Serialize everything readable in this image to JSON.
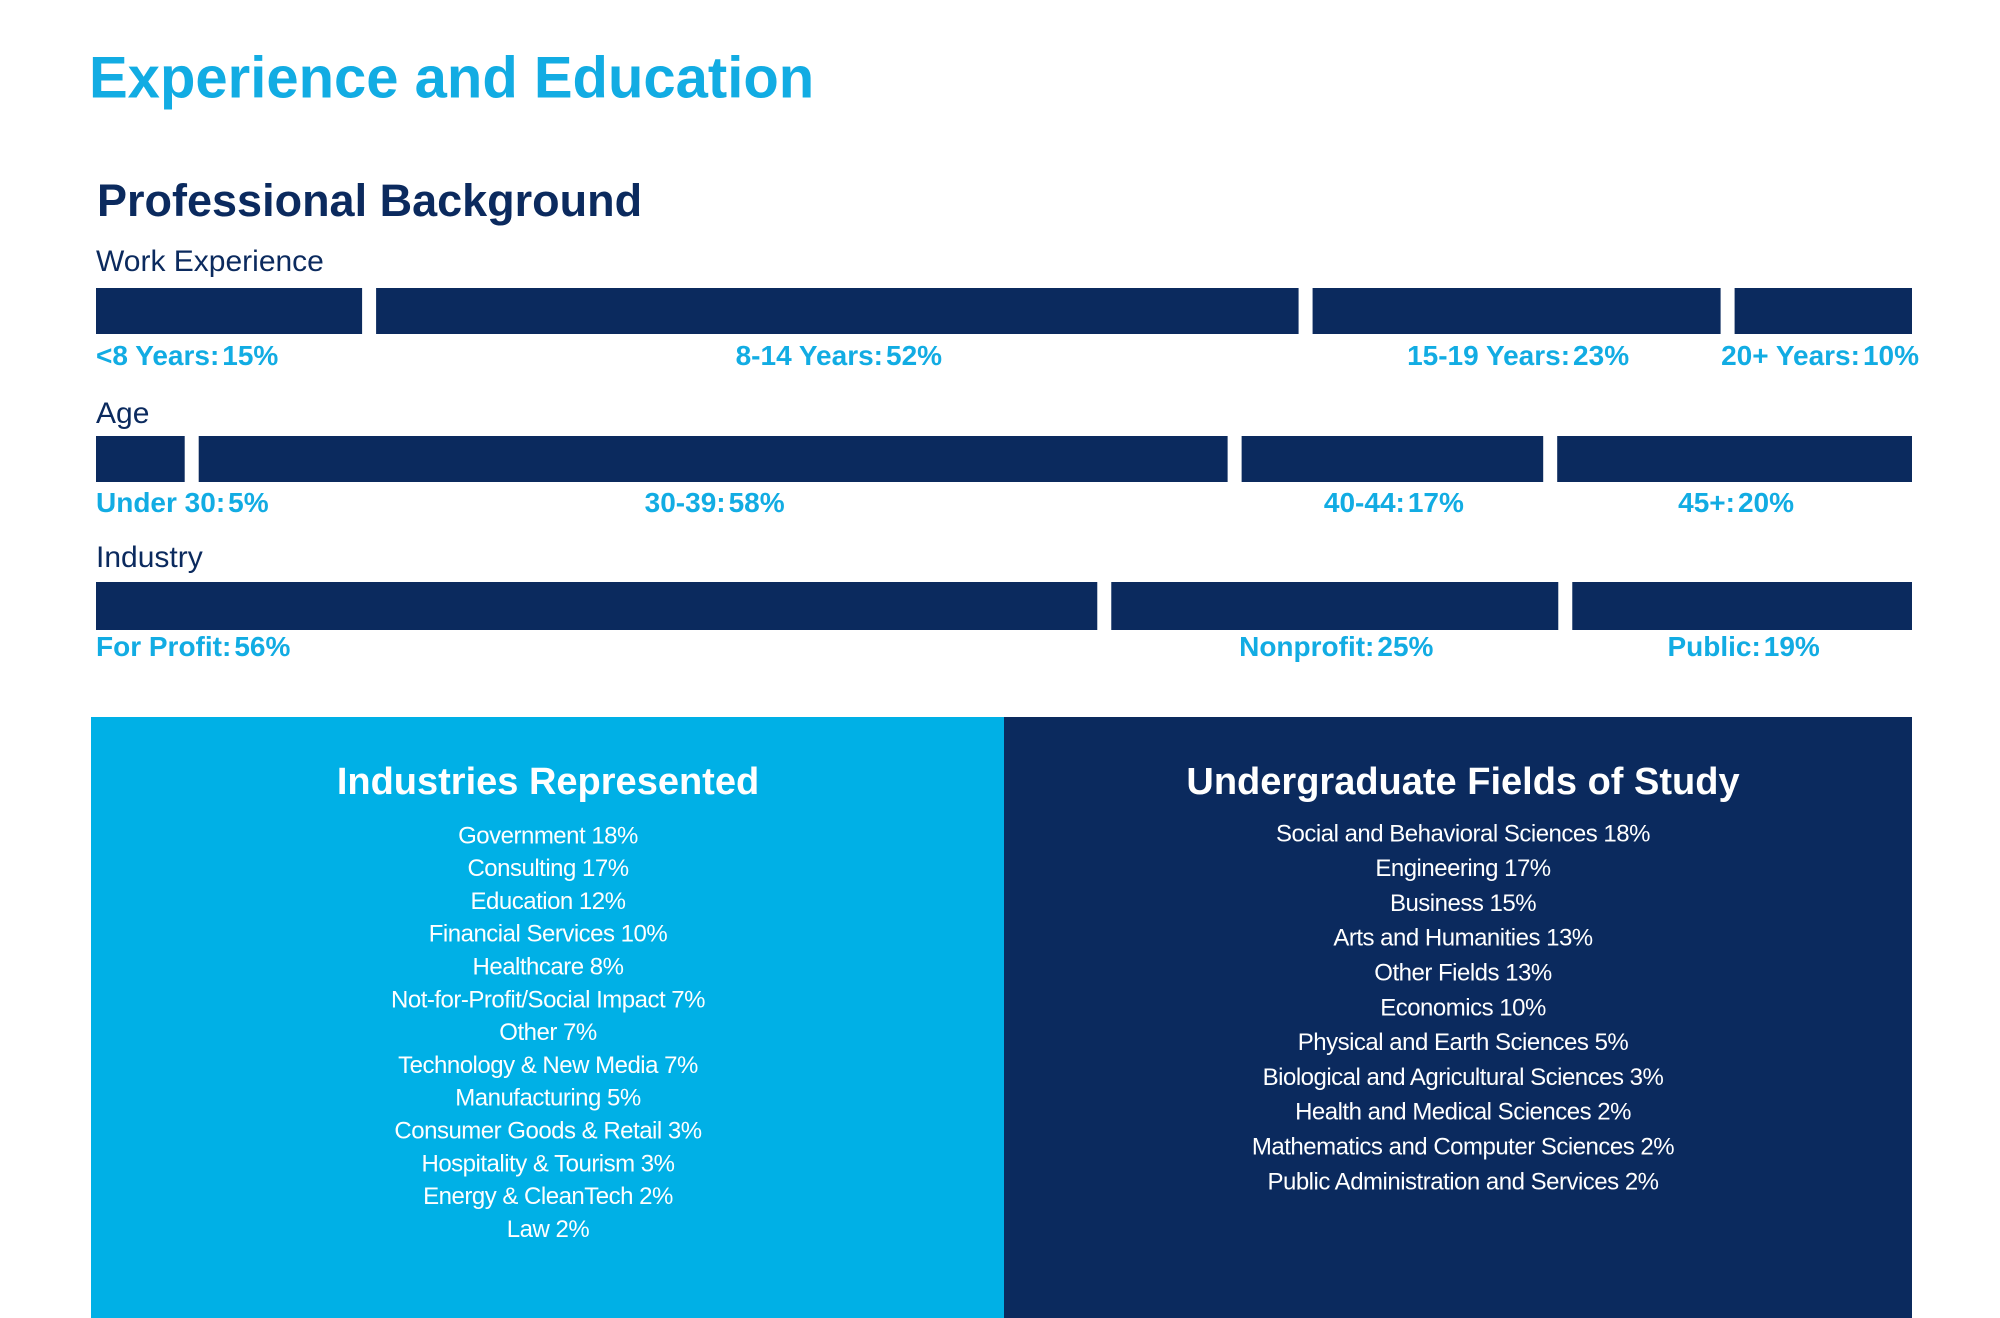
{
  "header": {
    "title": "Experience and Education"
  },
  "professional_background": {
    "title": "Professional Background",
    "groups": [
      {
        "name": "Work Experience",
        "segments": [
          {
            "label": "<8 Years:",
            "value": 15,
            "value_label": "15%"
          },
          {
            "label": "8-14 Years:",
            "value": 52,
            "value_label": "52%"
          },
          {
            "label": "15-19 Years:",
            "value": 23,
            "value_label": "23%"
          },
          {
            "label": "20+ Years:",
            "value": 10,
            "value_label": "10%"
          }
        ]
      },
      {
        "name": "Age",
        "segments": [
          {
            "label": "Under 30:",
            "value": 5,
            "value_label": "5%"
          },
          {
            "label": "30-39:",
            "value": 58,
            "value_label": "58%"
          },
          {
            "label": "40-44:",
            "value": 17,
            "value_label": "17%"
          },
          {
            "label": "45+:",
            "value": 20,
            "value_label": "20%"
          }
        ]
      },
      {
        "name": "Industry",
        "segments": [
          {
            "label": "For Profit:",
            "value": 56,
            "value_label": "56%"
          },
          {
            "label": "Nonprofit:",
            "value": 25,
            "value_label": "25%"
          },
          {
            "label": "Public:",
            "value": 19,
            "value_label": "19%"
          }
        ]
      }
    ]
  },
  "industries": {
    "title": "Industries Represented",
    "items": [
      "Government 18%",
      "Consulting 17%",
      "Education 12%",
      "Financial Services 10%",
      "Healthcare 8%",
      "Not-for-Profit/Social Impact 7%",
      "Other 7%",
      "Technology & New Media 7%",
      "Manufacturing 5%",
      "Consumer Goods & Retail 3%",
      "Hospitality & Tourism 3%",
      "Energy & CleanTech 2%",
      "Law 2%"
    ]
  },
  "fields_of_study": {
    "title": "Undergraduate Fields of Study",
    "items": [
      "Social and Behavioral Sciences 18%",
      "Engineering 17%",
      "Business 15%",
      "Arts and Humanities 13%",
      "Other Fields 13%",
      "Economics 10%",
      "Physical and Earth Sciences 5%",
      "Biological and Agricultural Sciences 3%",
      "Health and Medical Sciences 2%",
      "Mathematics and Computer Sciences 2%",
      "Public Administration and Services 2%"
    ]
  }
}
